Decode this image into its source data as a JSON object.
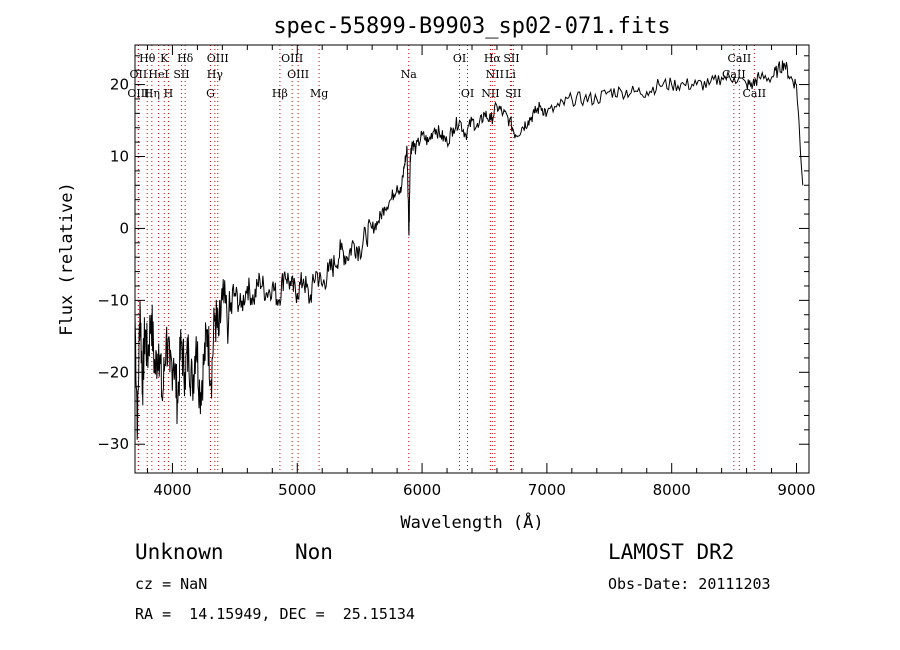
{
  "chart_data": {
    "type": "line",
    "title": "spec-55899-B9903_sp02-071.fits",
    "xlabel": "Wavelength (Å)",
    "ylabel": "Flux (relative)",
    "xlim": [
      3700,
      9100
    ],
    "ylim": [
      -34,
      25.5
    ],
    "x_ticks": [
      4000,
      5000,
      6000,
      7000,
      8000,
      9000
    ],
    "y_ticks": [
      -30,
      -20,
      -10,
      0,
      10,
      20
    ],
    "grid": false,
    "series": [
      {
        "x": [
          3700,
          3720,
          3740,
          3760,
          3780,
          3800,
          3830,
          3860,
          3890,
          3920,
          3950,
          3980,
          4010,
          4040,
          4070,
          4100,
          4130,
          4160,
          4190,
          4220,
          4250,
          4280,
          4310,
          4340,
          4370,
          4400,
          4450,
          4500,
          4550,
          4600,
          4650,
          4700,
          4750,
          4800,
          4850,
          4900,
          4950,
          5000,
          5050,
          5100,
          5150,
          5200,
          5250,
          5300,
          5350,
          5400,
          5450,
          5500,
          5550,
          5600,
          5650,
          5700,
          5750,
          5800,
          5830,
          5860,
          5880,
          5895,
          5905,
          5920,
          5950,
          6000,
          6050,
          6100,
          6150,
          6200,
          6250,
          6300,
          6350,
          6400,
          6450,
          6500,
          6550,
          6600,
          6650,
          6700,
          6750,
          6800,
          6850,
          6900,
          6950,
          7000,
          7100,
          7200,
          7300,
          7400,
          7500,
          7600,
          7700,
          7800,
          7900,
          8000,
          8100,
          8200,
          8300,
          8400,
          8500,
          8600,
          8650,
          8700,
          8800,
          8850,
          8900,
          8950,
          9000,
          9050
        ],
        "y": [
          -12,
          -28,
          -10,
          -22,
          -14,
          -18,
          -12,
          -20,
          -16,
          -24,
          -15,
          -20,
          -18,
          -24,
          -16,
          -20,
          -17,
          -22,
          -15,
          -23,
          -19,
          -14,
          -21,
          -12,
          -15,
          -10,
          -13,
          -9,
          -11,
          -8,
          -10,
          -7,
          -9,
          -8,
          -10,
          -6,
          -8,
          -9,
          -7,
          -10,
          -6,
          -8,
          -6,
          -5,
          -3,
          -4,
          -2,
          -3,
          -1,
          0,
          1,
          3,
          4,
          6,
          5,
          9,
          11,
          -1,
          10,
          12,
          11,
          13,
          12,
          14,
          13,
          12,
          14,
          15,
          13,
          15,
          14,
          16,
          15,
          17,
          16,
          15,
          13,
          14,
          15,
          16,
          17,
          16,
          17,
          18,
          18,
          18,
          19,
          19,
          19,
          19,
          20,
          20,
          20,
          20,
          20,
          21,
          21,
          20,
          20,
          21,
          21,
          22,
          23,
          21,
          20,
          6
        ]
      }
    ],
    "spectral_lines": [
      {
        "label": "Hθ",
        "x": 3798,
        "row": 1
      },
      {
        "label": "K",
        "x": 3934,
        "row": 1
      },
      {
        "label": "Hδ",
        "x": 4102,
        "row": 1
      },
      {
        "label": "OIII",
        "x": 4363,
        "row": 1
      },
      {
        "label": "OIII",
        "x": 4959,
        "row": 1
      },
      {
        "label": "OI",
        "x": 6300,
        "row": 1
      },
      {
        "label": "Hα",
        "x": 6563,
        "row": 1
      },
      {
        "label": "SII",
        "x": 6716,
        "row": 1
      },
      {
        "label": "CaII",
        "x": 8542,
        "row": 1
      },
      {
        "label": "OII",
        "x": 3727,
        "row": 2
      },
      {
        "label": "HeI",
        "x": 3889,
        "row": 2
      },
      {
        "label": "SII",
        "x": 4072,
        "row": 2
      },
      {
        "label": "Hγ",
        "x": 4340,
        "row": 2
      },
      {
        "label": "OIII",
        "x": 5007,
        "row": 2
      },
      {
        "label": "Na",
        "x": 5893,
        "row": 2
      },
      {
        "label": "NII",
        "x": 6583,
        "row": 2
      },
      {
        "label": "Li",
        "x": 6708,
        "row": 2
      },
      {
        "label": "CaII",
        "x": 8498,
        "row": 2
      },
      {
        "label": "OIII",
        "x": 3727,
        "row": 3
      },
      {
        "label": "Hη",
        "x": 3835,
        "row": 3
      },
      {
        "label": "H",
        "x": 3968,
        "row": 3
      },
      {
        "label": "G",
        "x": 4305,
        "row": 3
      },
      {
        "label": "Hβ",
        "x": 4861,
        "row": 3
      },
      {
        "label": "Mg",
        "x": 5175,
        "row": 3
      },
      {
        "label": "OI",
        "x": 6364,
        "row": 3
      },
      {
        "label": "NII",
        "x": 6548,
        "row": 3
      },
      {
        "label": "SII",
        "x": 6731,
        "row": 3
      },
      {
        "label": "CaII",
        "x": 8662,
        "row": 3
      }
    ]
  },
  "info": {
    "class_label": "Unknown",
    "subclass_label": "Non",
    "survey": "LAMOST DR2",
    "cz": "cz = NaN",
    "obs_date": "Obs-Date: 20111203",
    "coords": "RA =  14.15949, DEC =  25.15134"
  },
  "colors": {
    "spectrum": "#000000",
    "line_markers": "#cc0000",
    "axes": "#000000"
  }
}
